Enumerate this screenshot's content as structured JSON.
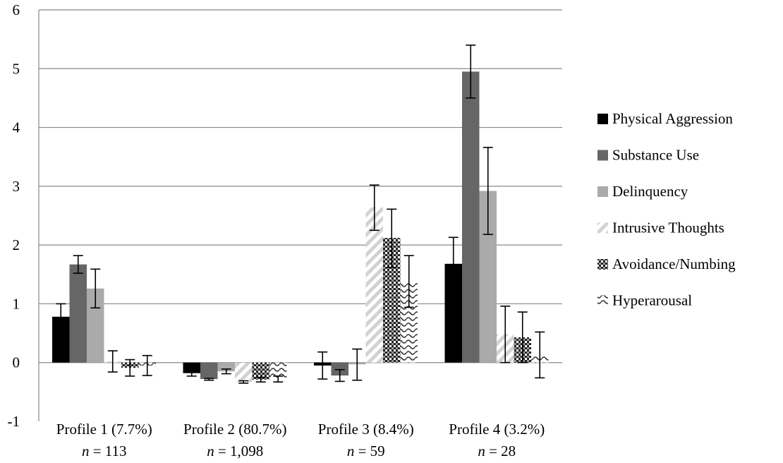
{
  "chart_data": {
    "type": "bar",
    "title": "",
    "xlabel": "",
    "ylabel": "",
    "ylim": [
      -1,
      6
    ],
    "yticks": [
      "-1",
      "0",
      "1",
      "2",
      "3",
      "4",
      "5",
      "6"
    ],
    "grid": true,
    "legend_position": "right",
    "categories": [
      "Profile 1 (7.7%)",
      "Profile 2 (80.7%)",
      "Profile 3 (8.4%)",
      "Profile 4 (3.2%)"
    ],
    "category_n": [
      {
        "prefix": "n",
        "text": " = 113"
      },
      {
        "prefix": "n",
        "text": " = 1,098"
      },
      {
        "prefix": "n",
        "text": " = 59"
      },
      {
        "prefix": "n",
        "text": " = 28"
      }
    ],
    "series": [
      {
        "name": "Physical Aggression",
        "color": "#000000",
        "pattern": "solid",
        "values": [
          0.78,
          -0.18,
          -0.05,
          1.68
        ],
        "error": [
          [
            0.56,
            1.0
          ],
          [
            -0.23,
            -0.13
          ],
          [
            -0.28,
            0.18
          ],
          [
            1.23,
            2.13
          ]
        ]
      },
      {
        "name": "Substance Use",
        "color": "#666666",
        "pattern": "solid",
        "values": [
          1.67,
          -0.28,
          -0.22,
          4.95
        ],
        "error": [
          [
            1.52,
            1.82
          ],
          [
            -0.3,
            -0.27
          ],
          [
            -0.32,
            -0.12
          ],
          [
            4.5,
            5.4
          ]
        ]
      },
      {
        "name": "Delinquency",
        "color": "#aaaaaa",
        "pattern": "solid",
        "values": [
          1.26,
          -0.15,
          -0.03,
          2.92
        ],
        "error": [
          [
            0.93,
            1.59
          ],
          [
            -0.19,
            -0.11
          ],
          [
            -0.3,
            0.23
          ],
          [
            2.18,
            3.66
          ]
        ]
      },
      {
        "name": "Intrusive Thoughts",
        "color": "#cccccc",
        "pattern": "diagonal",
        "values": [
          0.02,
          -0.33,
          2.64,
          0.48
        ],
        "error": [
          [
            -0.16,
            0.2
          ],
          [
            -0.35,
            -0.31
          ],
          [
            2.25,
            3.02
          ],
          [
            0.0,
            0.96
          ]
        ]
      },
      {
        "name": "Avoidance/Numbing",
        "color": "#555555",
        "pattern": "checker",
        "values": [
          -0.09,
          -0.29,
          2.12,
          0.43
        ],
        "error": [
          [
            -0.23,
            0.05
          ],
          [
            -0.33,
            -0.25
          ],
          [
            1.62,
            2.61
          ],
          [
            0.0,
            0.86
          ]
        ]
      },
      {
        "name": "Hyperarousal",
        "color": "#bbbbbb",
        "pattern": "wave",
        "values": [
          -0.05,
          -0.28,
          1.38,
          0.13
        ],
        "error": [
          [
            -0.22,
            0.12
          ],
          [
            -0.33,
            -0.23
          ],
          [
            0.94,
            1.82
          ],
          [
            -0.26,
            0.52
          ]
        ]
      }
    ]
  }
}
